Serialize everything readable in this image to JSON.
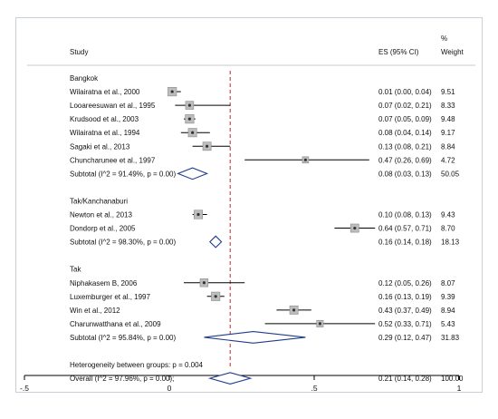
{
  "chart_data": {
    "type": "forest",
    "columns": {
      "study": "Study",
      "es": "ES (95% CI)",
      "weight_top": "%",
      "weight": "Weight"
    },
    "xlim": [
      -0.5,
      1
    ],
    "x_ticks": [
      {
        "value": -0.5,
        "label": "-.5"
      },
      {
        "value": 0,
        "label": "0"
      },
      {
        "value": 0.5,
        "label": ".5"
      },
      {
        "value": 1,
        "label": "1"
      }
    ],
    "reference_line": 0.21,
    "rows": [
      {
        "kind": "group",
        "label": "Bangkok"
      },
      {
        "kind": "study",
        "label": "Wilairatna et al., 2000",
        "es": 0.01,
        "lo": 0.0,
        "hi": 0.04,
        "es_text": "0.01 (0.00, 0.04)",
        "weight": "9.51"
      },
      {
        "kind": "study",
        "label": "Looareesuwan et al., 1995",
        "es": 0.07,
        "lo": 0.02,
        "hi": 0.21,
        "es_text": "0.07 (0.02, 0.21)",
        "weight": "8.33"
      },
      {
        "kind": "study",
        "label": "Krudsood et al., 2003",
        "es": 0.07,
        "lo": 0.05,
        "hi": 0.09,
        "es_text": "0.07 (0.05, 0.09)",
        "weight": "9.48"
      },
      {
        "kind": "study",
        "label": "Wilairatna et al., 1994",
        "es": 0.08,
        "lo": 0.04,
        "hi": 0.14,
        "es_text": "0.08 (0.04, 0.14)",
        "weight": "9.17"
      },
      {
        "kind": "study",
        "label": "Sagaki et al., 2013",
        "es": 0.13,
        "lo": 0.08,
        "hi": 0.21,
        "es_text": "0.13 (0.08, 0.21)",
        "weight": "8.84"
      },
      {
        "kind": "study",
        "label": "Chuncharunee et al., 1997",
        "es": 0.47,
        "lo": 0.26,
        "hi": 0.69,
        "es_text": "0.47 (0.26, 0.69)",
        "weight": "4.72"
      },
      {
        "kind": "subtotal",
        "label": "Subtotal  (I^2 = 91.49%, p = 0.00)",
        "es": 0.08,
        "lo": 0.03,
        "hi": 0.13,
        "es_text": "0.08 (0.03, 0.13)",
        "weight": "50.05"
      },
      {
        "kind": "blank"
      },
      {
        "kind": "group",
        "label": "Tak/Kanchanaburi"
      },
      {
        "kind": "study",
        "label": "Newton et al., 2013",
        "es": 0.1,
        "lo": 0.08,
        "hi": 0.13,
        "es_text": "0.10 (0.08, 0.13)",
        "weight": "9.43"
      },
      {
        "kind": "study",
        "label": "Dondorp et al., 2005",
        "es": 0.64,
        "lo": 0.57,
        "hi": 0.71,
        "es_text": "0.64 (0.57, 0.71)",
        "weight": "8.70"
      },
      {
        "kind": "subtotal",
        "label": "Subtotal  (I^2 = 98.30%, p = 0.00)",
        "es": 0.16,
        "lo": 0.14,
        "hi": 0.18,
        "es_text": "0.16 (0.14, 0.18)",
        "weight": "18.13"
      },
      {
        "kind": "blank"
      },
      {
        "kind": "group",
        "label": "Tak"
      },
      {
        "kind": "study",
        "label": "Niphakasem B, 2006",
        "es": 0.12,
        "lo": 0.05,
        "hi": 0.26,
        "es_text": "0.12 (0.05, 0.26)",
        "weight": "8.07"
      },
      {
        "kind": "study",
        "label": "Luxemburger et al., 1997",
        "es": 0.16,
        "lo": 0.13,
        "hi": 0.19,
        "es_text": "0.16 (0.13, 0.19)",
        "weight": "9.39"
      },
      {
        "kind": "study",
        "label": "Win et al., 2012",
        "es": 0.43,
        "lo": 0.37,
        "hi": 0.49,
        "es_text": "0.43 (0.37, 0.49)",
        "weight": "8.94"
      },
      {
        "kind": "study",
        "label": "Charunwatthana et al., 2009",
        "es": 0.52,
        "lo": 0.33,
        "hi": 0.71,
        "es_text": "0.52 (0.33, 0.71)",
        "weight": "5.43"
      },
      {
        "kind": "subtotal",
        "label": "Subtotal  (I^2 = 95.84%, p = 0.00)",
        "es": 0.29,
        "lo": 0.12,
        "hi": 0.47,
        "es_text": "0.29 (0.12, 0.47)",
        "weight": "31.83"
      },
      {
        "kind": "blank"
      },
      {
        "kind": "note",
        "label": "Heterogeneity between groups: p = 0.004"
      },
      {
        "kind": "overall",
        "label": "Overall  (I^2 = 97.96%, p = 0.00);",
        "es": 0.21,
        "lo": 0.14,
        "hi": 0.28,
        "es_text": "0.21 (0.14, 0.28)",
        "weight": "100.00"
      }
    ],
    "colors": {
      "frame": "#c9cfd6",
      "rule": "#c8c8c8",
      "reference_line": "#c0272d",
      "diamond": "#1f3b8c",
      "ci_line": "#000000",
      "marker_fill": "#bdbdbd",
      "marker_dot": "#333333"
    }
  }
}
